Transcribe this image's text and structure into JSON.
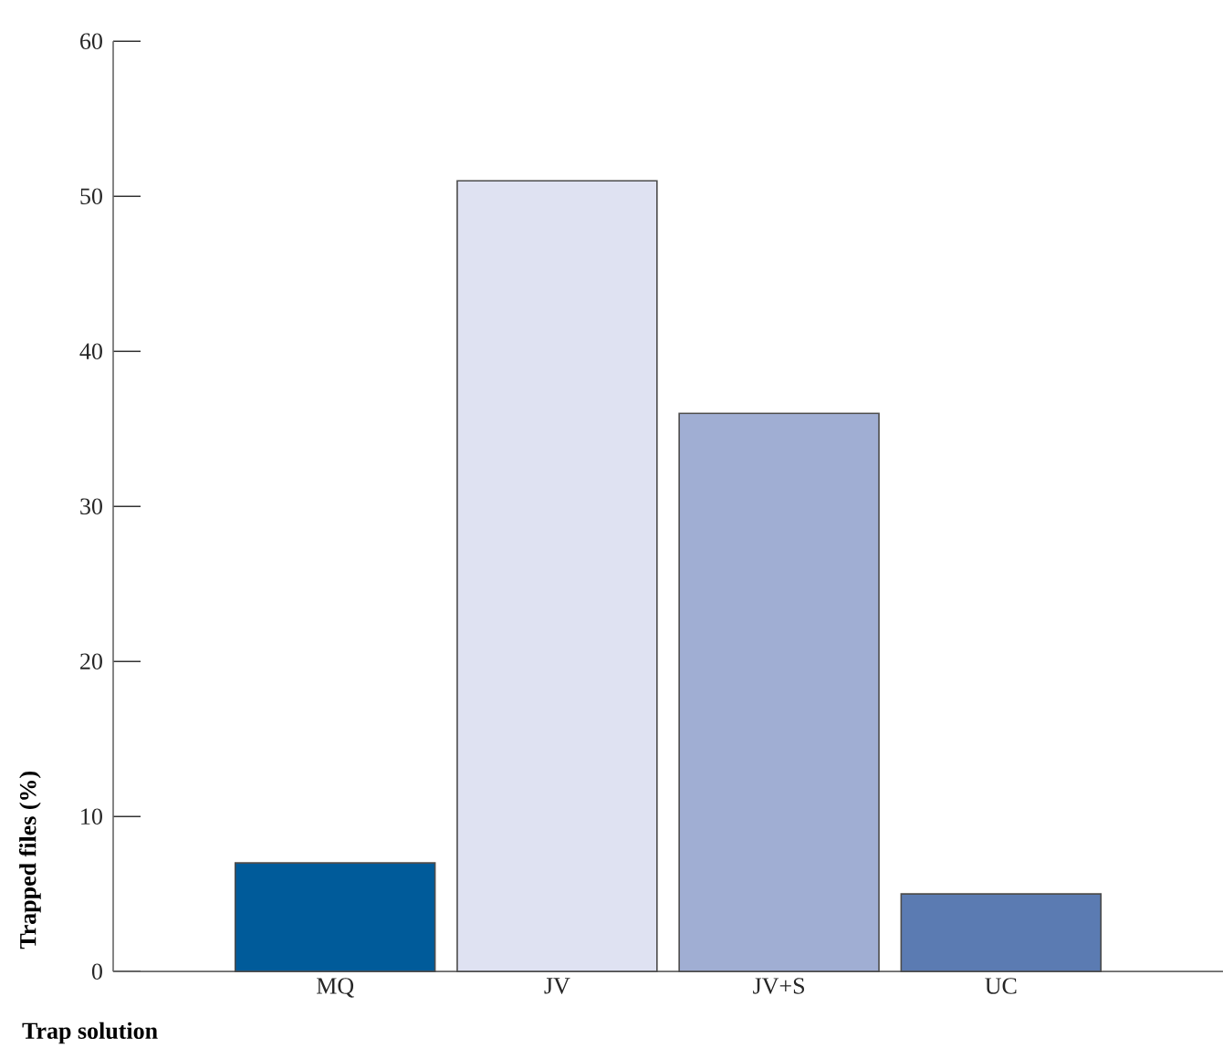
{
  "chart_data": {
    "type": "bar",
    "xlabel": "Trap solution",
    "ylabel": "Trapped files (%)",
    "categories": [
      "MQ",
      "JV",
      "JV+S",
      "UC"
    ],
    "values": [
      7,
      51,
      36,
      5
    ],
    "colors": [
      "#005b9a",
      "#dfe2f2",
      "#a0aed3",
      "#5b7bb2"
    ],
    "ylim": [
      0,
      60
    ],
    "yticks": [
      0,
      10,
      20,
      30,
      40,
      50,
      60
    ]
  }
}
